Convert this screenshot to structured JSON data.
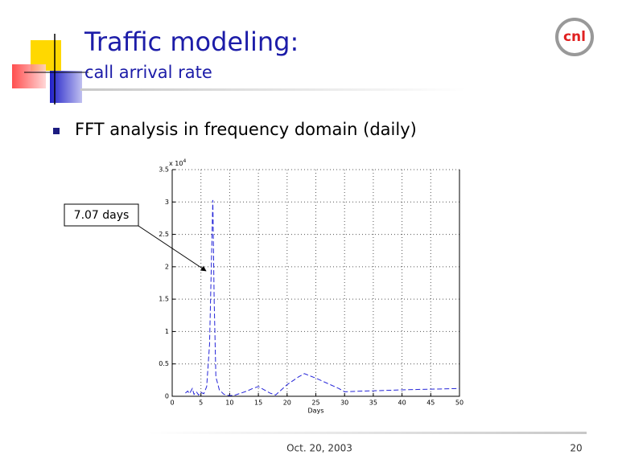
{
  "slide": {
    "title": "Traffic modeling:",
    "subtitle": "call arrival rate",
    "bullet": "FFT analysis in frequency domain (daily)",
    "footer_date": "Oct. 20, 2003",
    "page_number": "20",
    "logo": "cnl"
  },
  "chart_data": {
    "type": "line",
    "x_label": "Days",
    "y_multiplier": "x 10",
    "y_multiplier_exponent": "4",
    "annotation": "7.07 days",
    "x": [
      2.3,
      2.7,
      3.0,
      3.5,
      3.8,
      4.2,
      4.6,
      5.0,
      5.5,
      6.0,
      6.5,
      7.07,
      7.3,
      7.6,
      8.2,
      9,
      10,
      11,
      12,
      13,
      14,
      15,
      16,
      17,
      18,
      19,
      20,
      22,
      23,
      25,
      27,
      29,
      30,
      33,
      37,
      40,
      45,
      50
    ],
    "values": [
      0.05,
      0.08,
      0.04,
      0.12,
      0.03,
      0.07,
      0.02,
      0.06,
      0.04,
      0.15,
      0.8,
      3.03,
      1.5,
      0.3,
      0.1,
      0.03,
      0.01,
      0.02,
      0.05,
      0.08,
      0.12,
      0.15,
      0.1,
      0.05,
      0.02,
      0.1,
      0.18,
      0.3,
      0.35,
      0.28,
      0.2,
      0.12,
      0.07,
      0.08,
      0.09,
      0.1,
      0.11,
      0.12
    ],
    "color": "#2424d8",
    "xlim": [
      0,
      50
    ],
    "xticks": [
      0,
      5,
      10,
      15,
      20,
      25,
      30,
      35,
      40,
      45,
      50
    ],
    "ylim": [
      0,
      3.5
    ],
    "yticks": [
      0,
      0.5,
      1,
      1.5,
      2,
      2.5,
      3,
      3.5
    ],
    "grid": true
  }
}
